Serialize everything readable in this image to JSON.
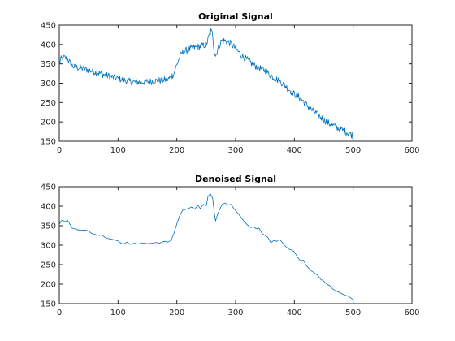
{
  "chart_data": [
    {
      "type": "line",
      "title": "Original Signal",
      "xlabel": "",
      "ylabel": "",
      "xlim": [
        0,
        600
      ],
      "ylim": [
        150,
        450
      ],
      "xticks": [
        0,
        100,
        200,
        300,
        400,
        500,
        600
      ],
      "yticks": [
        150,
        200,
        250,
        300,
        350,
        400,
        450
      ],
      "grid": false,
      "color": "#0072BD",
      "noise_amplitude": 9,
      "series": [
        {
          "points": [
            [
              0,
              350
            ],
            [
              3,
              362
            ],
            [
              8,
              366
            ],
            [
              15,
              362
            ],
            [
              20,
              348
            ],
            [
              25,
              342
            ],
            [
              40,
              338
            ],
            [
              55,
              332
            ],
            [
              70,
              325
            ],
            [
              85,
              318
            ],
            [
              100,
              312
            ],
            [
              115,
              306
            ],
            [
              125,
              303
            ],
            [
              140,
              303
            ],
            [
              150,
              304
            ],
            [
              160,
              305
            ],
            [
              170,
              307
            ],
            [
              178,
              308
            ],
            [
              185,
              310
            ],
            [
              190,
              316
            ],
            [
              195,
              325
            ],
            [
              200,
              348
            ],
            [
              205,
              368
            ],
            [
              210,
              380
            ],
            [
              220,
              387
            ],
            [
              230,
              392
            ],
            [
              240,
              395
            ],
            [
              250,
              400
            ],
            [
              255,
              422
            ],
            [
              258,
              435
            ],
            [
              261,
              426
            ],
            [
              264,
              380
            ],
            [
              266,
              370
            ],
            [
              268,
              382
            ],
            [
              272,
              396
            ],
            [
              276,
              410
            ],
            [
              282,
              410
            ],
            [
              290,
              404
            ],
            [
              300,
              390
            ],
            [
              310,
              372
            ],
            [
              320,
              360
            ],
            [
              330,
              348
            ],
            [
              340,
              340
            ],
            [
              350,
              333
            ],
            [
              360,
              320
            ],
            [
              370,
              310
            ],
            [
              380,
              300
            ],
            [
              390,
              285
            ],
            [
              400,
              272
            ],
            [
              410,
              262
            ],
            [
              420,
              245
            ],
            [
              430,
              230
            ],
            [
              440,
              218
            ],
            [
              450,
              206
            ],
            [
              460,
              195
            ],
            [
              470,
              187
            ],
            [
              480,
              180
            ],
            [
              490,
              173
            ],
            [
              500,
              165
            ]
          ]
        }
      ]
    },
    {
      "type": "line",
      "title": "Denoised Signal",
      "xlabel": "",
      "ylabel": "",
      "xlim": [
        0,
        600
      ],
      "ylim": [
        150,
        450
      ],
      "xticks": [
        0,
        100,
        200,
        300,
        400,
        500,
        600
      ],
      "yticks": [
        150,
        200,
        250,
        300,
        350,
        400,
        450
      ],
      "grid": false,
      "color": "#0072BD",
      "series": [
        {
          "points": [
            [
              0,
              352
            ],
            [
              3,
              362
            ],
            [
              6,
              364
            ],
            [
              10,
              360
            ],
            [
              14,
              364
            ],
            [
              18,
              354
            ],
            [
              22,
              344
            ],
            [
              30,
              340
            ],
            [
              38,
              338
            ],
            [
              45,
              339
            ],
            [
              50,
              336
            ],
            [
              55,
              330
            ],
            [
              60,
              328
            ],
            [
              68,
              325
            ],
            [
              72,
              326
            ],
            [
              80,
              318
            ],
            [
              90,
              315
            ],
            [
              100,
              311
            ],
            [
              105,
              305
            ],
            [
              110,
              303
            ],
            [
              115,
              308
            ],
            [
              120,
              302
            ],
            [
              128,
              305
            ],
            [
              135,
              303
            ],
            [
              140,
              306
            ],
            [
              150,
              304
            ],
            [
              158,
              305
            ],
            [
              165,
              307
            ],
            [
              170,
              305
            ],
            [
              178,
              310
            ],
            [
              185,
              308
            ],
            [
              190,
              312
            ],
            [
              195,
              330
            ],
            [
              200,
              355
            ],
            [
              205,
              376
            ],
            [
              210,
              390
            ],
            [
              218,
              393
            ],
            [
              225,
              398
            ],
            [
              230,
              392
            ],
            [
              236,
              402
            ],
            [
              240,
              394
            ],
            [
              245,
              405
            ],
            [
              250,
              400
            ],
            [
              253,
              425
            ],
            [
              257,
              432
            ],
            [
              261,
              420
            ],
            [
              264,
              380
            ],
            [
              266,
              362
            ],
            [
              269,
              378
            ],
            [
              273,
              392
            ],
            [
              277,
              405
            ],
            [
              282,
              408
            ],
            [
              288,
              403
            ],
            [
              292,
              405
            ],
            [
              298,
              392
            ],
            [
              305,
              380
            ],
            [
              310,
              370
            ],
            [
              315,
              360
            ],
            [
              320,
              352
            ],
            [
              326,
              345
            ],
            [
              330,
              348
            ],
            [
              335,
              342
            ],
            [
              340,
              344
            ],
            [
              345,
              330
            ],
            [
              350,
              325
            ],
            [
              355,
              320
            ],
            [
              360,
              306
            ],
            [
              365,
              312
            ],
            [
              370,
              310
            ],
            [
              374,
              315
            ],
            [
              378,
              310
            ],
            [
              383,
              300
            ],
            [
              390,
              290
            ],
            [
              395,
              288
            ],
            [
              400,
              283
            ],
            [
              405,
              270
            ],
            [
              410,
              260
            ],
            [
              415,
              262
            ],
            [
              420,
              248
            ],
            [
              425,
              240
            ],
            [
              430,
              233
            ],
            [
              435,
              228
            ],
            [
              440,
              222
            ],
            [
              445,
              212
            ],
            [
              450,
              208
            ],
            [
              455,
              200
            ],
            [
              460,
              196
            ],
            [
              465,
              188
            ],
            [
              470,
              183
            ],
            [
              475,
              180
            ],
            [
              480,
              176
            ],
            [
              485,
              172
            ],
            [
              490,
              170
            ],
            [
              495,
              166
            ],
            [
              500,
              160
            ]
          ]
        }
      ]
    }
  ]
}
